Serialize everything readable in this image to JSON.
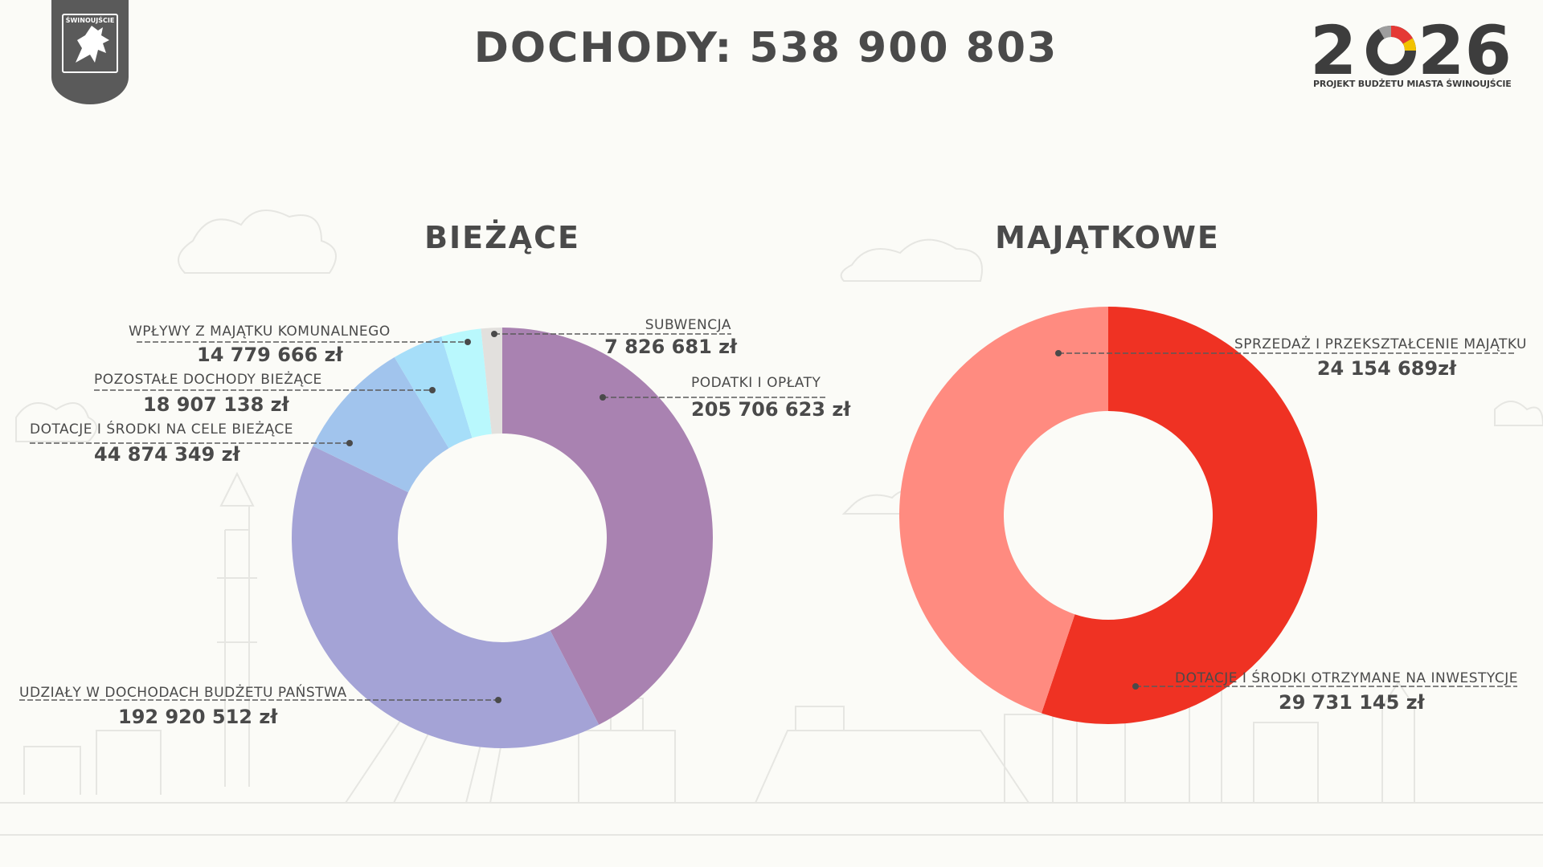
{
  "header": {
    "crest_label": "ŚWINOUJŚCIE",
    "title": "DOCHODY: 538 900 803",
    "logo_year_left": "2",
    "logo_year_right": "26",
    "logo_subtitle": "PROJEKT BUDŻETU MIASTA ŚWINOUJŚCIE"
  },
  "colors": {
    "text": "#4a4a4a",
    "background": "#fbfbf7",
    "logo_ring": [
      "#3d3d3d",
      "#9e9e9e",
      "#e53935",
      "#f2c200"
    ]
  },
  "chart_data": [
    {
      "type": "pie",
      "title": "BIEŻĄCE",
      "donut": true,
      "slices": [
        {
          "label": "PODATKI I OPŁATY",
          "value": 205706623,
          "value_label": "205 706 623 zł",
          "color": "#a982b1"
        },
        {
          "label": "UDZIAŁY W DOCHODACH BUDŻETU PAŃSTWA",
          "value": 192920512,
          "value_label": "192 920 512 zł",
          "color": "#a4a3d6"
        },
        {
          "label": "DOTACJE I ŚRODKI NA CELE BIEŻĄCE",
          "value": 44874349,
          "value_label": "44 874 349 zł",
          "color": "#a1c4ed"
        },
        {
          "label": "POZOSTAŁE DOCHODY BIEŻĄCE",
          "value": 18907138,
          "value_label": "18 907 138 zł",
          "color": "#a6def9"
        },
        {
          "label": "WPŁYWY Z MAJĄTKU KOMUNALNEGO",
          "value": 14779666,
          "value_label": "14 779 666 zł",
          "color": "#b9f8fd"
        },
        {
          "label": "SUBWENCJA",
          "value": 7826681,
          "value_label": "7 826 681 zł",
          "color": "#e2e0dd"
        }
      ]
    },
    {
      "type": "pie",
      "title": "MAJĄTKOWE",
      "donut": true,
      "slices": [
        {
          "label": "DOTACJE I ŚRODKI OTRZYMANE NA INWESTYCJE",
          "value": 29731145,
          "value_label": "29 731 145 zł",
          "color": "#ef3223"
        },
        {
          "label": "SPRZEDAŻ I PRZEKSZTAŁCENIE MAJĄTKU",
          "value": 24154689,
          "value_label": "24 154 689zł",
          "color": "#ff8b80"
        }
      ]
    }
  ]
}
